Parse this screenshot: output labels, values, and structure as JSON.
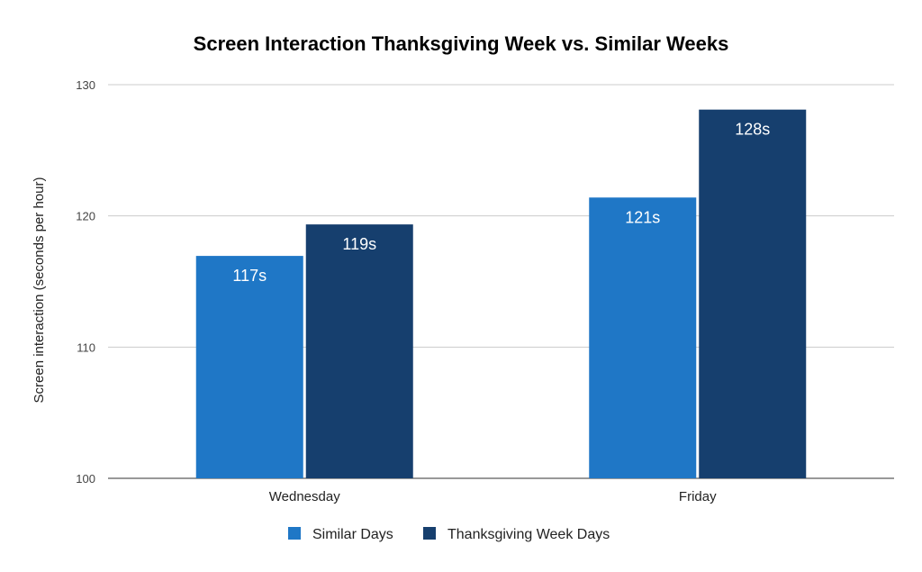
{
  "chart_data": {
    "type": "bar",
    "title": "Screen Interaction Thanksgiving Week vs. Similar Weeks",
    "xlabel": "",
    "ylabel": "Screen interaction (seconds per hour)",
    "ylim": [
      100,
      130
    ],
    "yticks": [
      100,
      110,
      120,
      130
    ],
    "grid": true,
    "legend_position": "bottom",
    "categories": [
      "Wednesday",
      "Friday"
    ],
    "series": [
      {
        "name": "Similar Days",
        "color": "#1f77c6",
        "values": [
          116.95,
          121.4
        ],
        "labels": [
          "117s",
          "121s"
        ]
      },
      {
        "name": "Thanksgiving Week Days",
        "color": "#163f6e",
        "values": [
          119.35,
          128.1
        ],
        "labels": [
          "119s",
          "128s"
        ]
      }
    ]
  }
}
